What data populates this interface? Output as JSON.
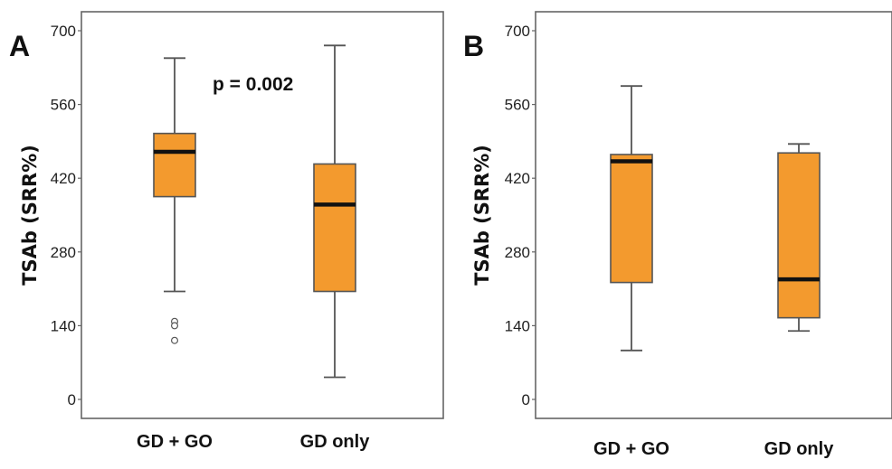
{
  "chart_data": [
    {
      "type": "boxplot",
      "panel_label": "A",
      "ylabel": "TSAb (SRR%)",
      "ylim": [
        0,
        700
      ],
      "yticks": [
        0,
        140,
        280,
        420,
        560,
        700
      ],
      "annotation": "p = 0.002",
      "categories": [
        "GD + GO",
        "GD only"
      ],
      "boxes": [
        {
          "category": "GD + GO",
          "whisker_low": 205,
          "q1": 385,
          "median": 470,
          "q3": 505,
          "whisker_high": 648,
          "outliers": [
            148,
            140,
            112
          ]
        },
        {
          "category": "GD only",
          "whisker_low": 42,
          "q1": 205,
          "median": 370,
          "q3": 447,
          "whisker_high": 672,
          "outliers": []
        }
      ],
      "colors": {
        "box_fill": "#f39a2e",
        "box_stroke": "#555555",
        "median": "#111111"
      }
    },
    {
      "type": "boxplot",
      "panel_label": "B",
      "ylabel": "TSAb (SRR%)",
      "ylim": [
        0,
        700
      ],
      "yticks": [
        0,
        140,
        280,
        420,
        560,
        700
      ],
      "categories": [
        "GD + GO",
        "GD only"
      ],
      "boxes": [
        {
          "category": "GD + GO",
          "whisker_low": 93,
          "q1": 222,
          "median": 452,
          "q3": 465,
          "whisker_high": 595,
          "outliers": []
        },
        {
          "category": "GD only",
          "whisker_low": 130,
          "q1": 155,
          "median": 228,
          "q3": 468,
          "whisker_high": 485,
          "outliers": []
        }
      ],
      "colors": {
        "box_fill": "#f39a2e",
        "box_stroke": "#555555",
        "median": "#111111"
      }
    }
  ]
}
